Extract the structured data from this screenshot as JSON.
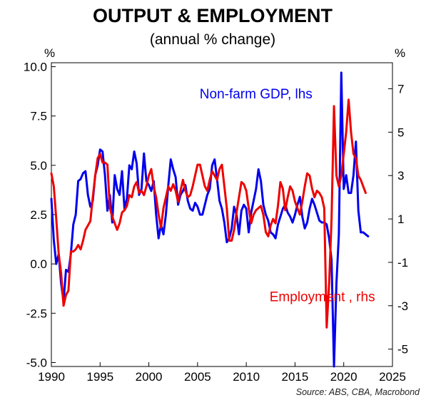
{
  "chart_data": {
    "type": "line",
    "title": "OUTPUT & EMPLOYMENT",
    "subtitle": "(annual % change)",
    "source": "Source: ABS, CBA, Macrobond",
    "left_unit": "%",
    "right_unit": "%",
    "x_ticks": [
      "1990",
      "1995",
      "2000",
      "2005",
      "2010",
      "2015",
      "2020",
      "2025"
    ],
    "x_range": [
      1990,
      2025
    ],
    "y_left": {
      "range": [
        -5.2,
        10.2
      ],
      "ticks": [
        "10.0",
        "7.5",
        "5.0",
        "2.5",
        "0.0",
        "-2.5",
        "-5.0"
      ],
      "tick_values": [
        10,
        7.5,
        5,
        2.5,
        0,
        -2.5,
        -5
      ]
    },
    "y_right": {
      "range": [
        -5.8,
        8.2
      ],
      "ticks": [
        "7",
        "5",
        "3",
        "1",
        "-1",
        "-3",
        "-5"
      ],
      "tick_values": [
        7,
        5,
        3,
        1,
        -1,
        -3,
        -5
      ]
    },
    "grid": false,
    "series": [
      {
        "name": "Non-farm GDP, lhs",
        "axis": "left",
        "color": "#0000ee",
        "points": [
          [
            1990.0,
            3.3
          ],
          [
            1990.25,
            1.2
          ],
          [
            1990.5,
            0.0
          ],
          [
            1990.75,
            0.5
          ],
          [
            1991.0,
            -1.0
          ],
          [
            1991.25,
            -1.9
          ],
          [
            1991.5,
            -0.3
          ],
          [
            1991.75,
            -0.4
          ],
          [
            1992.0,
            0.5
          ],
          [
            1992.25,
            2.0
          ],
          [
            1992.5,
            2.5
          ],
          [
            1992.75,
            4.2
          ],
          [
            1993.0,
            4.3
          ],
          [
            1993.25,
            4.6
          ],
          [
            1993.5,
            4.7
          ],
          [
            1993.75,
            3.5
          ],
          [
            1994.0,
            2.9
          ],
          [
            1994.25,
            3.2
          ],
          [
            1994.5,
            4.5
          ],
          [
            1994.75,
            5.0
          ],
          [
            1995.0,
            5.8
          ],
          [
            1995.25,
            5.7
          ],
          [
            1995.5,
            4.5
          ],
          [
            1995.75,
            2.7
          ],
          [
            1996.0,
            3.5
          ],
          [
            1996.25,
            2.1
          ],
          [
            1996.5,
            4.5
          ],
          [
            1996.75,
            3.8
          ],
          [
            1997.0,
            3.5
          ],
          [
            1997.25,
            4.7
          ],
          [
            1997.5,
            2.8
          ],
          [
            1997.75,
            3.3
          ],
          [
            1998.0,
            5.0
          ],
          [
            1998.25,
            4.8
          ],
          [
            1998.5,
            5.7
          ],
          [
            1998.75,
            5.1
          ],
          [
            1999.0,
            3.5
          ],
          [
            1999.25,
            3.8
          ],
          [
            1999.5,
            5.6
          ],
          [
            1999.75,
            4.2
          ],
          [
            2000.0,
            4.0
          ],
          [
            2000.25,
            3.7
          ],
          [
            2000.5,
            4.2
          ],
          [
            2000.75,
            2.5
          ],
          [
            2001.0,
            1.3
          ],
          [
            2001.25,
            2.0
          ],
          [
            2001.5,
            1.5
          ],
          [
            2001.75,
            2.5
          ],
          [
            2002.0,
            4.0
          ],
          [
            2002.25,
            5.3
          ],
          [
            2002.5,
            4.8
          ],
          [
            2002.75,
            4.4
          ],
          [
            2003.0,
            3.0
          ],
          [
            2003.25,
            3.5
          ],
          [
            2003.5,
            3.7
          ],
          [
            2003.75,
            4.0
          ],
          [
            2004.0,
            3.2
          ],
          [
            2004.25,
            2.8
          ],
          [
            2004.5,
            2.7
          ],
          [
            2004.75,
            3.1
          ],
          [
            2005.0,
            2.9
          ],
          [
            2005.25,
            2.5
          ],
          [
            2005.5,
            2.5
          ],
          [
            2005.75,
            3.0
          ],
          [
            2006.0,
            3.5
          ],
          [
            2006.25,
            3.8
          ],
          [
            2006.5,
            5.0
          ],
          [
            2006.75,
            5.3
          ],
          [
            2007.0,
            4.3
          ],
          [
            2007.25,
            3.2
          ],
          [
            2007.5,
            2.8
          ],
          [
            2007.75,
            2.1
          ],
          [
            2008.0,
            1.1
          ],
          [
            2008.25,
            1.3
          ],
          [
            2008.5,
            1.8
          ],
          [
            2008.75,
            2.9
          ],
          [
            2009.0,
            2.5
          ],
          [
            2009.25,
            1.5
          ],
          [
            2009.5,
            2.7
          ],
          [
            2009.75,
            3.0
          ],
          [
            2010.0,
            2.8
          ],
          [
            2010.25,
            1.6
          ],
          [
            2010.5,
            2.6
          ],
          [
            2010.75,
            3.2
          ],
          [
            2011.0,
            3.8
          ],
          [
            2011.25,
            4.8
          ],
          [
            2011.5,
            4.2
          ],
          [
            2011.75,
            3.0
          ],
          [
            2012.0,
            2.5
          ],
          [
            2012.25,
            2.2
          ],
          [
            2012.5,
            1.6
          ],
          [
            2012.75,
            1.5
          ],
          [
            2013.0,
            1.3
          ],
          [
            2013.25,
            2.0
          ],
          [
            2013.5,
            2.4
          ],
          [
            2013.75,
            2.8
          ],
          [
            2014.0,
            3.0
          ],
          [
            2014.25,
            2.6
          ],
          [
            2014.5,
            2.4
          ],
          [
            2014.75,
            2.1
          ],
          [
            2015.0,
            2.5
          ],
          [
            2015.25,
            3.0
          ],
          [
            2015.5,
            3.4
          ],
          [
            2015.75,
            2.4
          ],
          [
            2016.0,
            1.8
          ],
          [
            2016.25,
            2.1
          ],
          [
            2016.5,
            2.8
          ],
          [
            2016.75,
            3.3
          ],
          [
            2017.0,
            3.0
          ],
          [
            2017.25,
            2.6
          ],
          [
            2017.5,
            2.2
          ],
          [
            2017.75,
            2.1
          ],
          [
            2018.0,
            2.1
          ],
          [
            2018.25,
            2.0
          ],
          [
            2018.5,
            1.3
          ],
          [
            2018.75,
            0.2
          ],
          [
            2019.0,
            -5.2
          ],
          [
            2019.25,
            -1.0
          ],
          [
            2019.5,
            1.5
          ],
          [
            2019.75,
            9.7
          ],
          [
            2020.0,
            3.8
          ],
          [
            2020.25,
            4.5
          ],
          [
            2020.5,
            3.6
          ],
          [
            2020.75,
            3.6
          ],
          [
            2021.0,
            4.5
          ],
          [
            2021.25,
            6.2
          ],
          [
            2021.5,
            2.7
          ],
          [
            2021.75,
            1.6
          ],
          [
            2022.0,
            1.6
          ],
          [
            2022.25,
            1.5
          ],
          [
            2022.5,
            1.4
          ]
        ]
      },
      {
        "name": "Employment , rhs",
        "axis": "right",
        "color": "#ee0000",
        "points": [
          [
            1990.0,
            3.1
          ],
          [
            1990.25,
            2.5
          ],
          [
            1990.5,
            1.0
          ],
          [
            1990.75,
            -0.6
          ],
          [
            1991.0,
            -1.5
          ],
          [
            1991.25,
            -3.0
          ],
          [
            1991.5,
            -2.5
          ],
          [
            1991.75,
            -2.3
          ],
          [
            1992.0,
            -0.5
          ],
          [
            1992.25,
            -0.5
          ],
          [
            1992.5,
            -0.4
          ],
          [
            1992.75,
            -0.2
          ],
          [
            1993.0,
            -0.4
          ],
          [
            1993.25,
            0.0
          ],
          [
            1993.5,
            0.5
          ],
          [
            1993.75,
            0.7
          ],
          [
            1994.0,
            0.9
          ],
          [
            1994.25,
            2.0
          ],
          [
            1994.5,
            3.0
          ],
          [
            1994.75,
            3.8
          ],
          [
            1995.0,
            4.0
          ],
          [
            1995.25,
            3.6
          ],
          [
            1995.5,
            3.6
          ],
          [
            1995.75,
            3.5
          ],
          [
            1996.0,
            1.5
          ],
          [
            1996.25,
            1.1
          ],
          [
            1996.5,
            0.8
          ],
          [
            1996.75,
            0.5
          ],
          [
            1997.0,
            0.8
          ],
          [
            1997.25,
            1.3
          ],
          [
            1997.5,
            1.4
          ],
          [
            1997.75,
            1.6
          ],
          [
            1998.0,
            2.1
          ],
          [
            1998.25,
            2.0
          ],
          [
            1998.5,
            2.5
          ],
          [
            1998.75,
            2.7
          ],
          [
            1999.0,
            2.2
          ],
          [
            1999.25,
            2.3
          ],
          [
            1999.5,
            2.1
          ],
          [
            1999.75,
            2.5
          ],
          [
            2000.0,
            3.0
          ],
          [
            2000.25,
            3.3
          ],
          [
            2000.5,
            2.5
          ],
          [
            2000.75,
            2.0
          ],
          [
            2001.0,
            1.2
          ],
          [
            2001.25,
            0.6
          ],
          [
            2001.5,
            1.5
          ],
          [
            2001.75,
            2.0
          ],
          [
            2002.0,
            2.5
          ],
          [
            2002.25,
            2.3
          ],
          [
            2002.5,
            2.6
          ],
          [
            2002.75,
            2.3
          ],
          [
            2003.0,
            1.8
          ],
          [
            2003.25,
            2.3
          ],
          [
            2003.5,
            2.8
          ],
          [
            2003.75,
            2.3
          ],
          [
            2004.0,
            2.0
          ],
          [
            2004.25,
            2.1
          ],
          [
            2004.5,
            2.5
          ],
          [
            2004.75,
            3.0
          ],
          [
            2005.0,
            3.5
          ],
          [
            2005.25,
            3.5
          ],
          [
            2005.5,
            3.0
          ],
          [
            2005.75,
            2.5
          ],
          [
            2006.0,
            2.3
          ],
          [
            2006.25,
            2.8
          ],
          [
            2006.5,
            3.2
          ],
          [
            2006.75,
            3.0
          ],
          [
            2007.0,
            2.8
          ],
          [
            2007.25,
            3.3
          ],
          [
            2007.5,
            3.5
          ],
          [
            2007.75,
            2.5
          ],
          [
            2008.0,
            1.5
          ],
          [
            2008.25,
            0.0
          ],
          [
            2008.5,
            0.0
          ],
          [
            2008.75,
            0.5
          ],
          [
            2009.0,
            1.3
          ],
          [
            2009.25,
            2.0
          ],
          [
            2009.5,
            2.7
          ],
          [
            2009.75,
            2.6
          ],
          [
            2010.0,
            2.3
          ],
          [
            2010.25,
            1.5
          ],
          [
            2010.5,
            0.8
          ],
          [
            2010.75,
            1.2
          ],
          [
            2011.0,
            1.4
          ],
          [
            2011.25,
            1.5
          ],
          [
            2011.5,
            1.6
          ],
          [
            2011.75,
            1.2
          ],
          [
            2012.0,
            0.4
          ],
          [
            2012.25,
            0.2
          ],
          [
            2012.5,
            0.7
          ],
          [
            2012.75,
            1.0
          ],
          [
            2013.0,
            0.8
          ],
          [
            2013.25,
            1.6
          ],
          [
            2013.5,
            2.7
          ],
          [
            2013.75,
            2.4
          ],
          [
            2014.0,
            1.4
          ],
          [
            2014.25,
            2.0
          ],
          [
            2014.5,
            2.5
          ],
          [
            2014.75,
            2.3
          ],
          [
            2015.0,
            1.8
          ],
          [
            2015.25,
            1.5
          ],
          [
            2015.5,
            1.2
          ],
          [
            2015.75,
            1.8
          ],
          [
            2016.0,
            2.5
          ],
          [
            2016.25,
            3.1
          ],
          [
            2016.5,
            3.0
          ],
          [
            2016.75,
            2.4
          ],
          [
            2017.0,
            2.0
          ],
          [
            2017.25,
            2.3
          ],
          [
            2017.5,
            2.2
          ],
          [
            2017.75,
            2.0
          ],
          [
            2018.0,
            1.5
          ],
          [
            2018.25,
            -4.0
          ],
          [
            2018.5,
            -2.0
          ],
          [
            2018.75,
            1.0
          ],
          [
            2019.0,
            6.2
          ],
          [
            2019.25,
            3.0
          ],
          [
            2019.5,
            2.5
          ],
          [
            2019.75,
            3.0
          ],
          [
            2020.0,
            4.0
          ],
          [
            2020.25,
            5.0
          ],
          [
            2020.5,
            6.5
          ],
          [
            2020.75,
            5.0
          ],
          [
            2021.0,
            4.0
          ],
          [
            2021.25,
            3.8
          ],
          [
            2021.5,
            3.0
          ],
          [
            2021.75,
            2.8
          ],
          [
            2022.0,
            2.5
          ],
          [
            2022.25,
            2.2
          ]
        ]
      }
    ],
    "series_labels": [
      {
        "text": "Non-farm GDP, lhs",
        "color": "#0000ee",
        "x": 2011,
        "y_left": 8.4
      },
      {
        "text": "Employment , rhs",
        "color": "#ee0000",
        "x": 2017.8,
        "y_left": -1.9
      }
    ]
  }
}
